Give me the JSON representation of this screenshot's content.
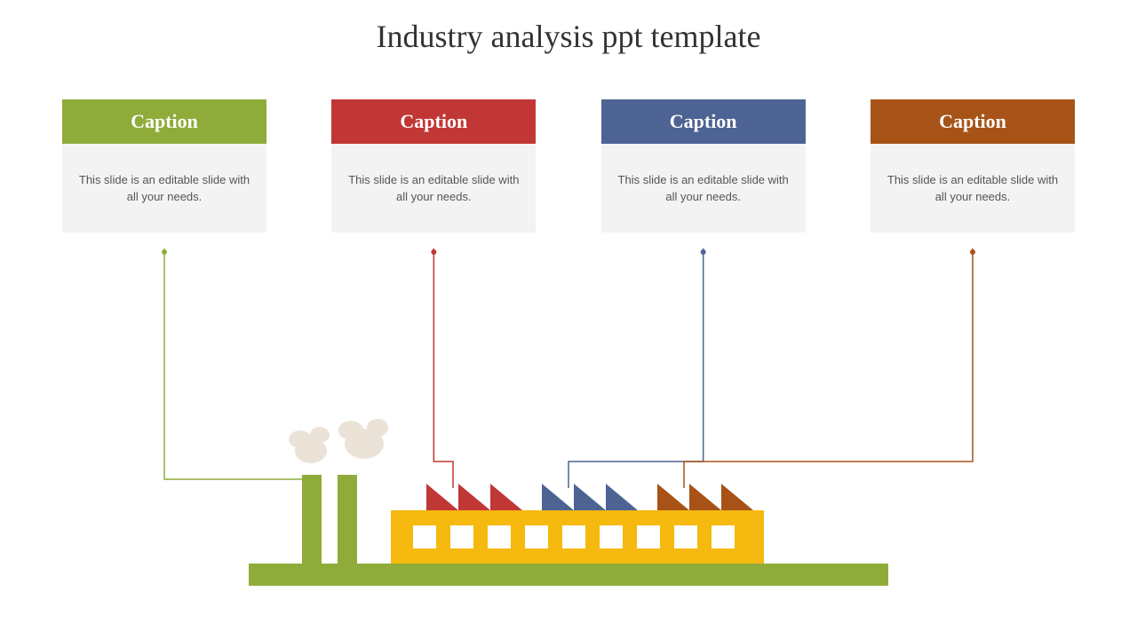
{
  "title": "Industry analysis ppt template",
  "cards": [
    {
      "caption": "Caption",
      "body": "This slide is an editable slide with all your needs.",
      "color": "#8fac3a"
    },
    {
      "caption": "Caption",
      "body": "This slide is an editable slide with all your needs.",
      "color": "#c13736"
    },
    {
      "caption": "Caption",
      "body": "This slide is an editable slide with all your needs.",
      "color": "#4d6393"
    },
    {
      "caption": "Caption",
      "body": "This slide is an editable slide with all your needs.",
      "color": "#a75318"
    }
  ],
  "factory": {
    "base_color": "#8fac3a",
    "building_color": "#f5b90f",
    "window_color": "#ffffff",
    "roof_colors": [
      "#c13736",
      "#4d6393",
      "#a75318"
    ],
    "chimney_color": "#8fac3a",
    "smoke_color": "#ebe3d7"
  },
  "connectors": {
    "stroke_width": 1.5,
    "dot_radius": 3
  }
}
